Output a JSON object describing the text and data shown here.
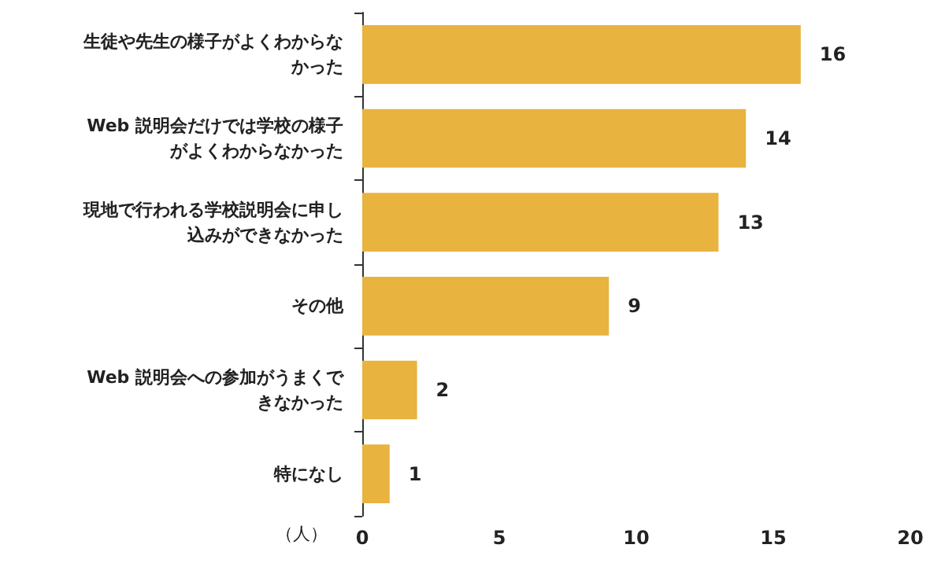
{
  "chart_data": {
    "type": "bar",
    "orientation": "horizontal",
    "categories": [
      "生徒や先生の様子がよくわからなかった",
      "Web 説明会だけでは学校の様子がよくわからなかった",
      "現地で行われる学校説明会に申し込みができなかった",
      "その他",
      "Web 説明会への参加がうまくできなかった",
      "特になし"
    ],
    "values": [
      16,
      14,
      13,
      9,
      2,
      1
    ],
    "color": "#e8b33f",
    "xlabel": "（人）",
    "xlim": [
      0,
      20
    ],
    "xticks": [
      0,
      5,
      10,
      15,
      20
    ],
    "grid": false,
    "data_labels": true
  }
}
